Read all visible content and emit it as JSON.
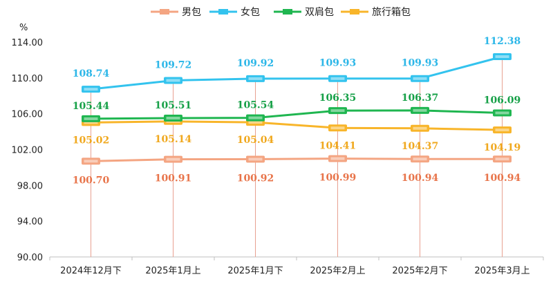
{
  "chart_data": {
    "type": "line",
    "ylabel": "%",
    "ylim": [
      90,
      114
    ],
    "yticks": [
      "90.00",
      "94.00",
      "98.00",
      "102.00",
      "106.00",
      "110.00",
      "114.00"
    ],
    "categories": [
      "2024年12月下",
      "2025年1月上",
      "2025年1月下",
      "2025年2月上",
      "2025年2月下",
      "2025年3月上"
    ],
    "grid": false,
    "legend": "top",
    "series": [
      {
        "name": "男包",
        "color": "#f4a582",
        "label_color": "#e8744a",
        "values": [
          100.7,
          100.91,
          100.92,
          100.99,
          100.94,
          100.94
        ]
      },
      {
        "name": "女包",
        "color": "#33c3ee",
        "label_color": "#2db7e8",
        "values": [
          108.74,
          109.72,
          109.92,
          109.93,
          109.93,
          112.38
        ]
      },
      {
        "name": "双肩包",
        "color": "#1fb650",
        "label_color": "#16a047",
        "values": [
          105.44,
          105.51,
          105.54,
          106.35,
          106.37,
          106.09
        ]
      },
      {
        "name": "旅行箱包",
        "color": "#f8b52a",
        "label_color": "#f0a81e",
        "values": [
          105.02,
          105.14,
          105.04,
          104.41,
          104.37,
          104.19
        ]
      }
    ],
    "data_labels": {
      "男包": [
        "100.70",
        "100.91",
        "100.92",
        "100.99",
        "100.94",
        "100.94"
      ],
      "女包": [
        "108.74",
        "109.72",
        "109.92",
        "109.93",
        "109.93",
        "112.38"
      ],
      "双肩包": [
        "105.44",
        "105.51",
        "105.54",
        "106.35",
        "106.37",
        "106.09"
      ],
      "旅行箱包": [
        "105.02",
        "105.14",
        "105.04",
        "104.41",
        "104.37",
        "104.19"
      ]
    }
  }
}
